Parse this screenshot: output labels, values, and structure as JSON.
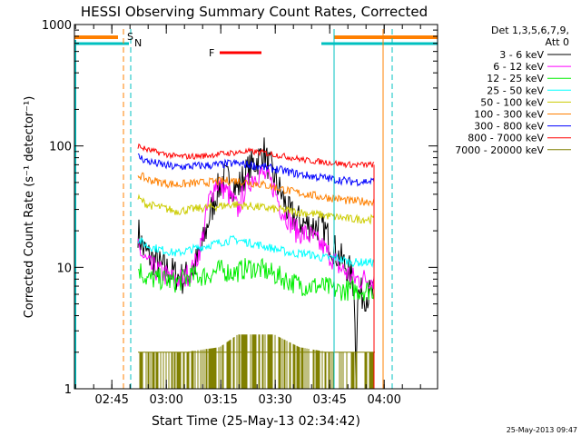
{
  "chart_data": {
    "type": "line",
    "title": "HESSI Observing Summary Count Rates, Corrected",
    "xlabel": "Start Time (25-May-13 02:34:42)",
    "ylabel": "Corrected Count Rate (s⁻¹ detector⁻¹)",
    "yscale": "log",
    "ylim": [
      1,
      1000
    ],
    "xlim_minutes": [
      0,
      100
    ],
    "y_ticks": [
      {
        "value": 1,
        "label": "1"
      },
      {
        "value": 10,
        "label": "10"
      },
      {
        "value": 100,
        "label": "100"
      },
      {
        "value": 1000,
        "label": "1000"
      }
    ],
    "x_ticks": [
      {
        "minutes": 10.3,
        "label": "02:45"
      },
      {
        "minutes": 25.3,
        "label": "03:00"
      },
      {
        "minutes": 40.3,
        "label": "03:15"
      },
      {
        "minutes": 55.3,
        "label": "03:30"
      },
      {
        "minutes": 70.3,
        "label": "03:45"
      },
      {
        "minutes": 85.3,
        "label": "04:00"
      }
    ],
    "legend_header": [
      "Det 1,3,5,6,7,9,",
      "Att 0"
    ],
    "legend_placement": "right",
    "data_start_min": 17.5,
    "data_end_min": 82.5,
    "series": [
      {
        "name": "3 - 6 keV",
        "color": "#000000",
        "points": [
          [
            17.5,
            20
          ],
          [
            19,
            14
          ],
          [
            21,
            12
          ],
          [
            24,
            10
          ],
          [
            27,
            9
          ],
          [
            30,
            8
          ],
          [
            33,
            10
          ],
          [
            35,
            14
          ],
          [
            37,
            25
          ],
          [
            39,
            40
          ],
          [
            41,
            55
          ],
          [
            43,
            50
          ],
          [
            45,
            45
          ],
          [
            47,
            58
          ],
          [
            49,
            70
          ],
          [
            51,
            80
          ],
          [
            52,
            95
          ],
          [
            53,
            75
          ],
          [
            55,
            55
          ],
          [
            57,
            40
          ],
          [
            59,
            28
          ],
          [
            61,
            25
          ],
          [
            63,
            23
          ],
          [
            65,
            22
          ],
          [
            67,
            22
          ],
          [
            69,
            20
          ],
          [
            71,
            15
          ],
          [
            73,
            12
          ],
          [
            75,
            10
          ],
          [
            76,
            9
          ],
          [
            77,
            7
          ],
          [
            77.5,
            1.5
          ],
          [
            78,
            6
          ]
        ]
      },
      {
        "name": "6 - 12 keV",
        "color": "#ff00ff",
        "points": [
          [
            17.5,
            15
          ],
          [
            19,
            12
          ],
          [
            21,
            10
          ],
          [
            24,
            9
          ],
          [
            27,
            8
          ],
          [
            30,
            8
          ],
          [
            33,
            10
          ],
          [
            35,
            16
          ],
          [
            37,
            35
          ],
          [
            39,
            50
          ],
          [
            41,
            45
          ],
          [
            43,
            38
          ],
          [
            45,
            30
          ],
          [
            47,
            45
          ],
          [
            49,
            55
          ],
          [
            51,
            60
          ],
          [
            53,
            55
          ],
          [
            55,
            45
          ],
          [
            57,
            30
          ],
          [
            59,
            25
          ],
          [
            61,
            20
          ],
          [
            63,
            19
          ],
          [
            65,
            18
          ],
          [
            67,
            16
          ],
          [
            69,
            14
          ],
          [
            71,
            12
          ],
          [
            73,
            10
          ],
          [
            75,
            9
          ],
          [
            77,
            8
          ]
        ]
      },
      {
        "name": "12 - 25 keV",
        "color": "#00ee00",
        "points": [
          [
            17.5,
            10
          ],
          [
            20,
            8
          ],
          [
            24,
            8
          ],
          [
            28,
            7.5
          ],
          [
            32,
            8.5
          ],
          [
            36,
            8.5
          ],
          [
            40,
            9.5
          ],
          [
            44,
            9
          ],
          [
            48,
            10
          ],
          [
            52,
            9.5
          ],
          [
            56,
            8.5
          ],
          [
            60,
            7.5
          ],
          [
            64,
            7
          ],
          [
            68,
            7
          ],
          [
            72,
            6.5
          ],
          [
            76,
            6.5
          ],
          [
            79,
            6.5
          ]
        ]
      },
      {
        "name": "25 - 50 keV",
        "color": "#00ffff",
        "points": [
          [
            17.5,
            17
          ],
          [
            20,
            15
          ],
          [
            24,
            14
          ],
          [
            28,
            13
          ],
          [
            32,
            14
          ],
          [
            36,
            15
          ],
          [
            40,
            16
          ],
          [
            44,
            17
          ],
          [
            48,
            16
          ],
          [
            52,
            15
          ],
          [
            56,
            14
          ],
          [
            60,
            13
          ],
          [
            64,
            13
          ],
          [
            68,
            12
          ],
          [
            72,
            12
          ],
          [
            76,
            11
          ],
          [
            79,
            11
          ]
        ]
      },
      {
        "name": "50 - 100 keV",
        "color": "#cccc00",
        "points": [
          [
            17.5,
            37
          ],
          [
            20,
            33
          ],
          [
            24,
            31
          ],
          [
            28,
            29
          ],
          [
            32,
            30
          ],
          [
            36,
            31
          ],
          [
            40,
            32
          ],
          [
            44,
            33
          ],
          [
            48,
            32
          ],
          [
            52,
            31
          ],
          [
            56,
            30
          ],
          [
            60,
            29
          ],
          [
            64,
            28
          ],
          [
            68,
            27
          ],
          [
            72,
            26
          ],
          [
            76,
            25
          ],
          [
            79,
            25
          ]
        ]
      },
      {
        "name": "100 - 300 keV",
        "color": "#ff8000",
        "points": [
          [
            17.5,
            58
          ],
          [
            20,
            53
          ],
          [
            24,
            50
          ],
          [
            28,
            48
          ],
          [
            32,
            49
          ],
          [
            36,
            50
          ],
          [
            40,
            51
          ],
          [
            44,
            52
          ],
          [
            48,
            50
          ],
          [
            52,
            48
          ],
          [
            56,
            45
          ],
          [
            60,
            42
          ],
          [
            64,
            40
          ],
          [
            68,
            38
          ],
          [
            72,
            37
          ],
          [
            76,
            35
          ],
          [
            79,
            35
          ]
        ]
      },
      {
        "name": "300 - 800 keV",
        "color": "#0000ff",
        "points": [
          [
            17.5,
            82
          ],
          [
            20,
            75
          ],
          [
            24,
            70
          ],
          [
            28,
            67
          ],
          [
            32,
            68
          ],
          [
            36,
            69
          ],
          [
            40,
            70
          ],
          [
            44,
            72
          ],
          [
            48,
            70
          ],
          [
            52,
            67
          ],
          [
            56,
            64
          ],
          [
            60,
            60
          ],
          [
            64,
            57
          ],
          [
            68,
            55
          ],
          [
            72,
            53
          ],
          [
            76,
            51
          ],
          [
            79,
            51
          ]
        ]
      },
      {
        "name": "800 - 7000 keV",
        "color": "#ff0000",
        "points": [
          [
            17.5,
            100
          ],
          [
            20,
            93
          ],
          [
            24,
            87
          ],
          [
            28,
            82
          ],
          [
            32,
            82
          ],
          [
            36,
            83
          ],
          [
            40,
            86
          ],
          [
            44,
            88
          ],
          [
            48,
            90
          ],
          [
            52,
            88
          ],
          [
            56,
            84
          ],
          [
            60,
            80
          ],
          [
            64,
            76
          ],
          [
            68,
            74
          ],
          [
            72,
            72
          ],
          [
            76,
            70
          ],
          [
            79,
            70
          ]
        ]
      },
      {
        "name": "7000 - 20000 keV",
        "color": "#808000",
        "points": [
          [
            17.5,
            2
          ],
          [
            30,
            2
          ],
          [
            40,
            2.2
          ],
          [
            45,
            2.8
          ],
          [
            55,
            2.8
          ],
          [
            62,
            2.2
          ],
          [
            70,
            2
          ],
          [
            79,
            2
          ]
        ]
      }
    ],
    "annotations": [
      {
        "label": "S",
        "color": "#ff8000"
      },
      {
        "label": "N",
        "color": "#00c0c0"
      },
      {
        "label": "F",
        "color": "#ff0000"
      }
    ],
    "saa_flag_minutes": [
      [
        0,
        12
      ],
      [
        71.5,
        100
      ]
    ],
    "night_flag_minutes": [
      [
        0,
        15
      ],
      [
        68,
        100
      ]
    ],
    "flare_flag_minutes": [
      [
        40,
        51.5
      ]
    ],
    "orange_boundaries_minutes": [
      13.5,
      85
    ],
    "cyan_boundaries_minutes": [
      15.5,
      71.5,
      87.5
    ],
    "timestamp": "25-May-2013 09:47"
  }
}
